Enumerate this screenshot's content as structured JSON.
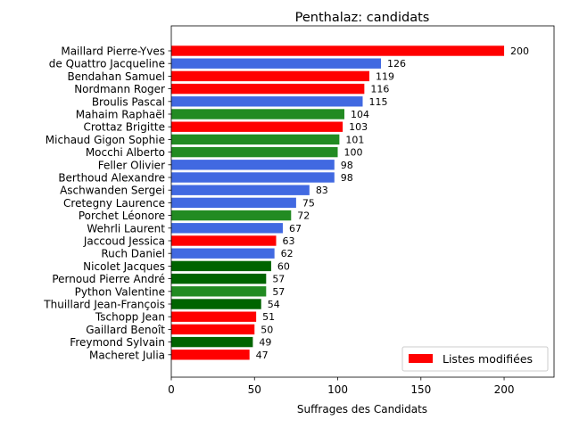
{
  "chart_data": {
    "type": "bar",
    "orientation": "horizontal",
    "title": "Penthalaz: candidats",
    "xlabel": "Suffrages des Candidats",
    "ylabel": "",
    "xlim": [
      0,
      230
    ],
    "xticks": [
      0,
      50,
      100,
      150,
      200
    ],
    "grid": false,
    "legend": {
      "position": "lower-right",
      "entries": [
        {
          "label": "Listes modifiées",
          "color": "#ff0000"
        }
      ]
    },
    "colors": {
      "red": "#ff0000",
      "blue": "#4169e1",
      "green": "#228b22",
      "darkgreen": "#006400"
    },
    "categories": [
      "Maillard Pierre-Yves",
      "de Quattro Jacqueline",
      "Bendahan Samuel",
      "Nordmann Roger",
      "Broulis Pascal",
      "Mahaim Raphaël",
      "Crottaz Brigitte",
      "Michaud Gigon Sophie",
      "Mocchi Alberto",
      "Feller Olivier",
      "Berthoud Alexandre",
      "Aschwanden Sergei",
      "Cretegny Laurence",
      "Porchet Léonore",
      "Wehrli Laurent",
      "Jaccoud Jessica",
      "Ruch Daniel",
      "Nicolet Jacques",
      "Pernoud Pierre André",
      "Python Valentine",
      "Thuillard Jean-François",
      "Tschopp Jean",
      "Gaillard Benoît",
      "Freymond Sylvain",
      "Macheret Julia"
    ],
    "values": [
      200,
      126,
      119,
      116,
      115,
      104,
      103,
      101,
      100,
      98,
      98,
      83,
      75,
      72,
      67,
      63,
      62,
      60,
      57,
      57,
      54,
      51,
      50,
      49,
      47
    ],
    "bar_colors": [
      "red",
      "blue",
      "red",
      "red",
      "blue",
      "green",
      "red",
      "green",
      "green",
      "blue",
      "blue",
      "blue",
      "blue",
      "green",
      "blue",
      "red",
      "blue",
      "darkgreen",
      "darkgreen",
      "green",
      "darkgreen",
      "red",
      "red",
      "darkgreen",
      "red"
    ]
  }
}
